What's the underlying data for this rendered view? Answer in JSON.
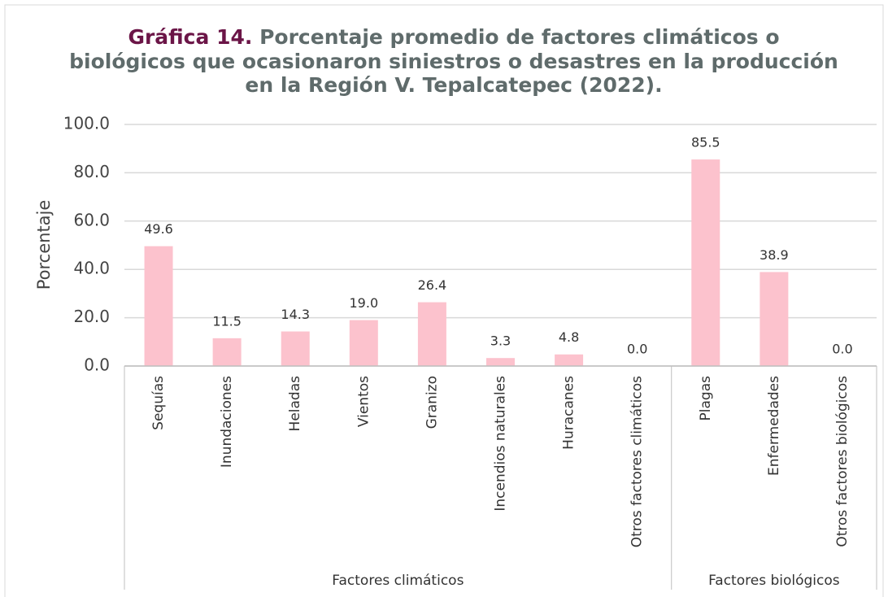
{
  "chart_data": {
    "type": "bar",
    "title": {
      "label": "Gráfica 14.",
      "lines": [
        "Porcentaje promedio de factores climáticos o",
        "biológicos que ocasionaron siniestros o desastres en la producción",
        "en la Región V. Tepalcatepec (2022)."
      ]
    },
    "y_label": "Porcentaje",
    "categories": [
      "Sequías",
      "Inundaciones",
      "Heladas",
      "Vientos",
      "Granizo",
      "Incendios naturales",
      "Huracanes",
      "Otros factores climáticos",
      "Plagas",
      "Enfermedades",
      "Otros factores biológicos"
    ],
    "groups": [
      {
        "name": "Factores climáticos",
        "count": 8
      },
      {
        "name": "Factores biológicos",
        "count": 3
      }
    ],
    "values": [
      49.6,
      11.5,
      14.3,
      19.0,
      26.4,
      3.3,
      4.8,
      0.0,
      85.5,
      38.9,
      0.0
    ],
    "value_labels": [
      "49.6",
      "11.5",
      "14.3",
      "19.0",
      "26.4",
      "3.3",
      "4.8",
      "0.0",
      "85.5",
      "38.9",
      "0.0"
    ],
    "color": "#fcc2cd",
    "ylim": [
      0,
      100
    ],
    "yticks": [
      {
        "value": 0,
        "label": "0.0"
      },
      {
        "value": 20,
        "label": "20.0"
      },
      {
        "value": 40,
        "label": "40.0"
      },
      {
        "value": 60,
        "label": "60.0"
      },
      {
        "value": 80,
        "label": "80.0"
      },
      {
        "value": 100,
        "label": "100.0"
      }
    ],
    "grid": true
  }
}
